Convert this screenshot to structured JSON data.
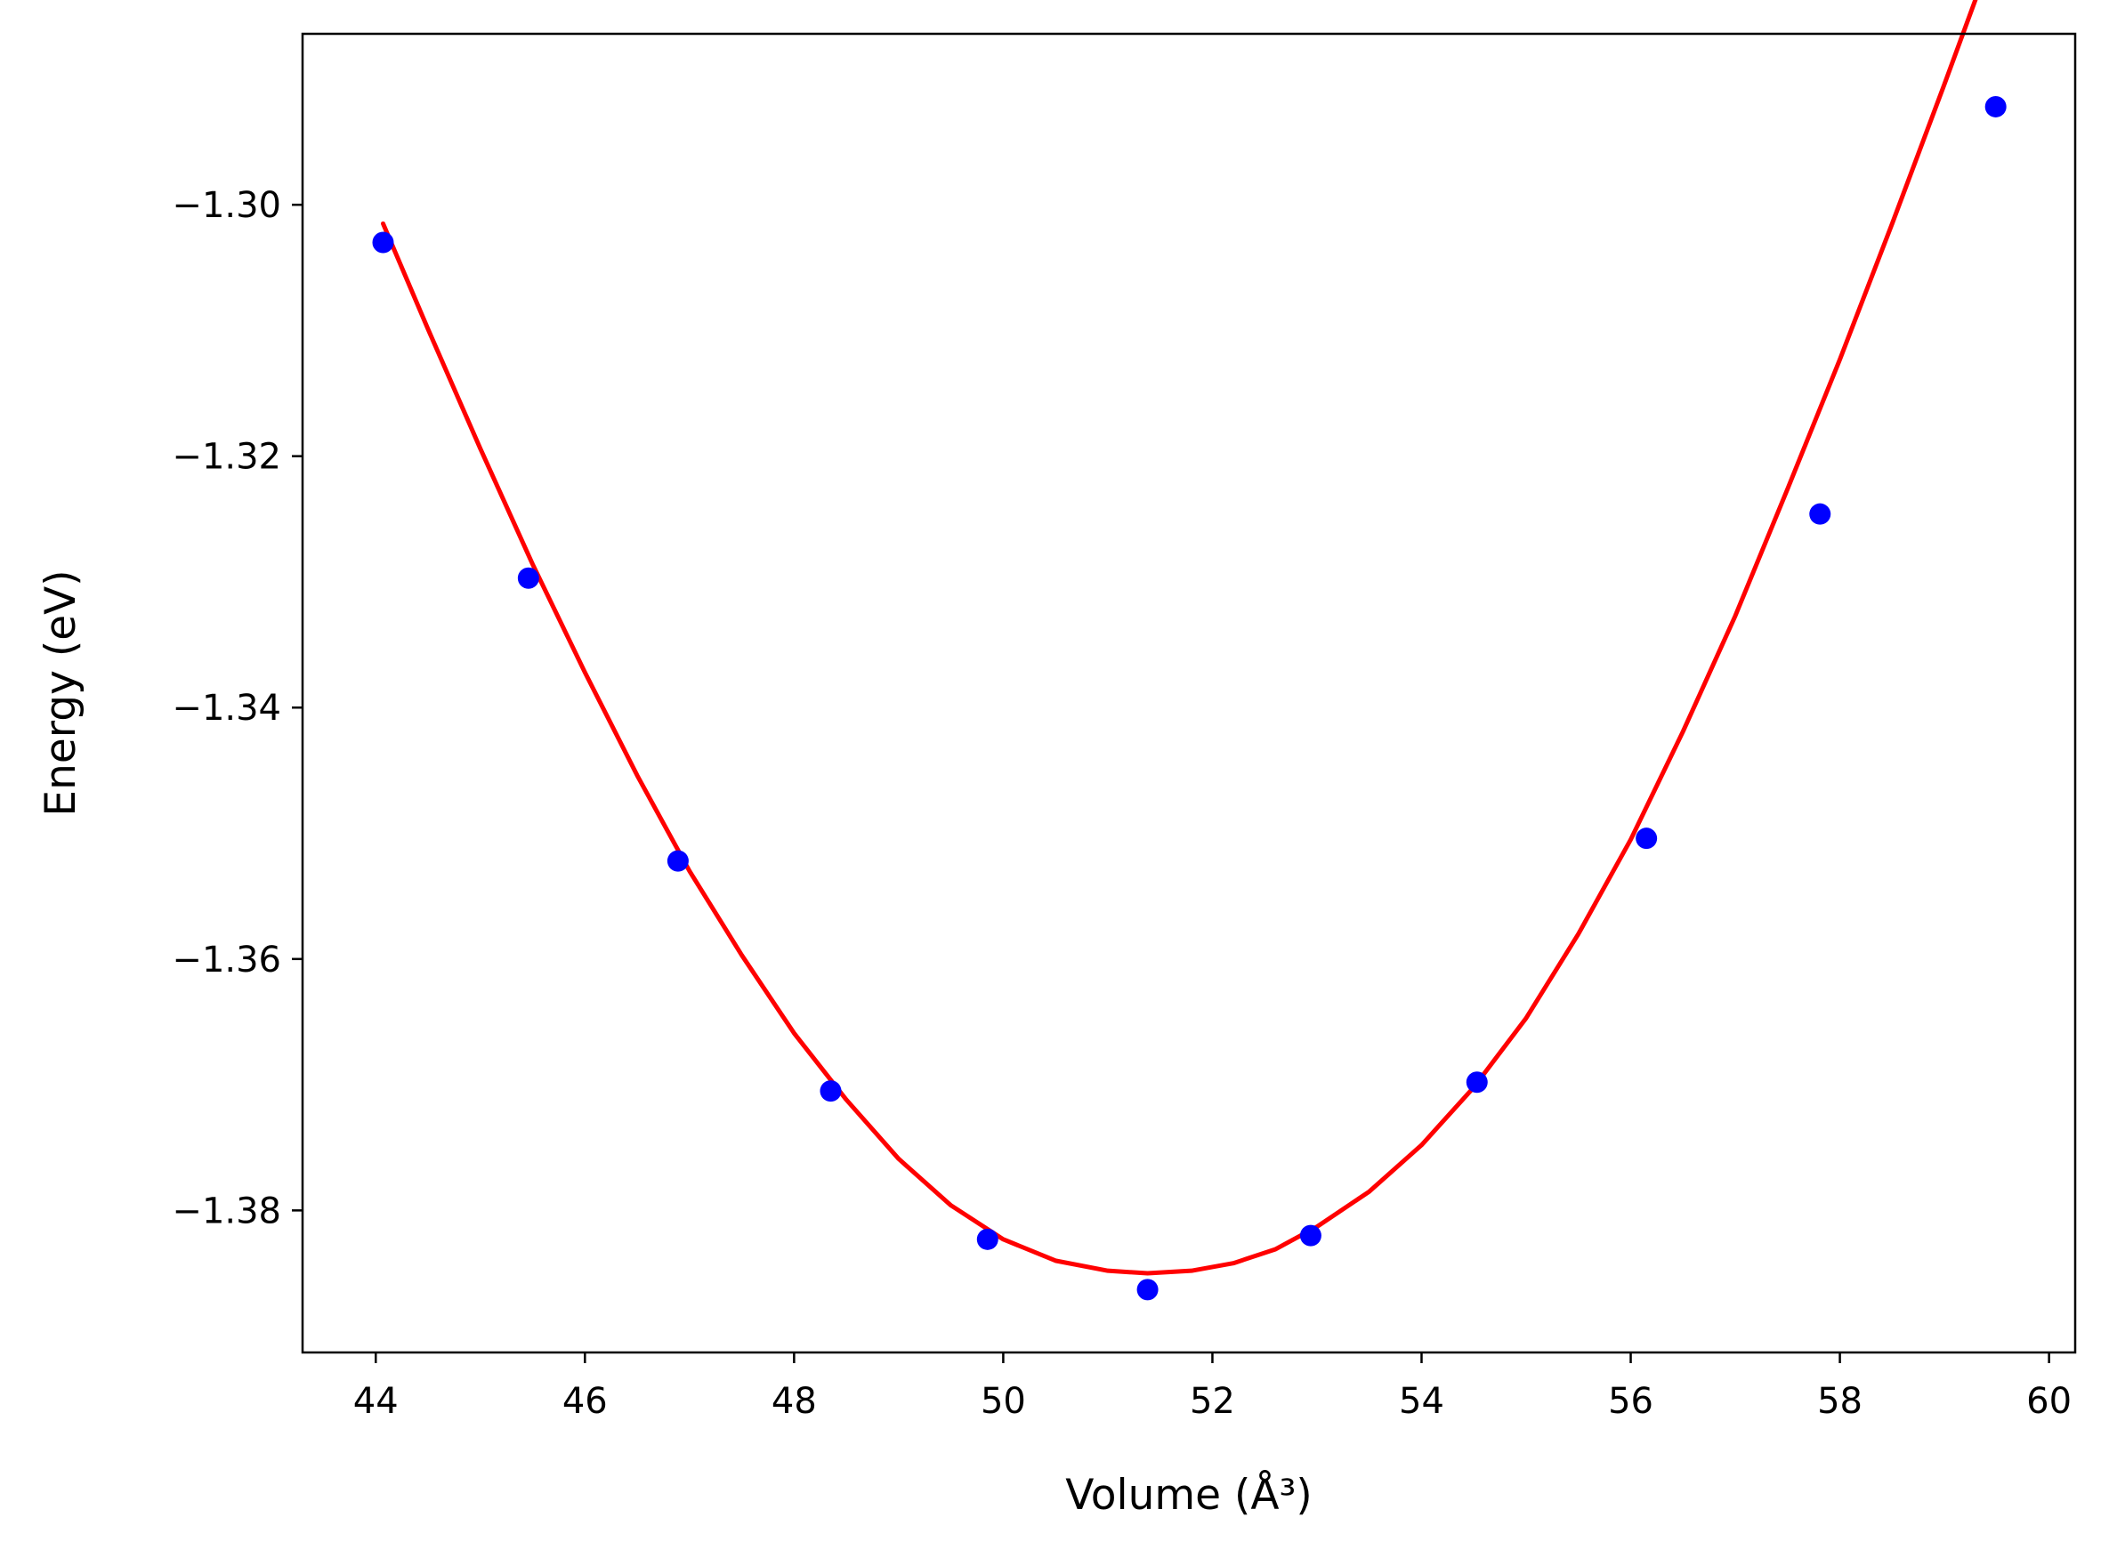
{
  "chart_data": {
    "type": "scatter",
    "title": "",
    "xlabel": "Volume (Å³)",
    "ylabel": "Energy (eV)",
    "xlim": [
      43.3,
      60.25
    ],
    "ylim": [
      -1.3913,
      -1.2864
    ],
    "xticks": [
      44,
      46,
      48,
      50,
      52,
      54,
      56,
      58,
      60
    ],
    "yticks": [
      -1.38,
      -1.36,
      -1.34,
      -1.32,
      -1.3
    ],
    "xtick_labels": [
      "44",
      "46",
      "48",
      "50",
      "52",
      "54",
      "56",
      "58",
      "60"
    ],
    "ytick_labels": [
      "−1.38",
      "−1.36",
      "−1.34",
      "−1.32",
      "−1.30"
    ],
    "grid": false,
    "legend": "none",
    "series": [
      {
        "kind": "points",
        "color": "#0000ff",
        "x": [
          44.07,
          45.46,
          46.89,
          48.35,
          49.85,
          51.38,
          52.94,
          54.53,
          56.15,
          57.81,
          59.49
        ],
        "y": [
          -1.303,
          -1.3297,
          -1.3522,
          -1.3705,
          -1.3823,
          -1.3863,
          -1.382,
          -1.3698,
          -1.3504,
          -1.3246,
          -1.2922
        ]
      },
      {
        "kind": "fit-curve",
        "color": "#ff0000",
        "x": [
          44.07,
          44.5,
          45.0,
          45.5,
          46.0,
          46.5,
          47.0,
          47.5,
          48.0,
          48.5,
          49.0,
          49.5,
          50.0,
          50.5,
          51.0,
          51.38,
          51.8,
          52.2,
          52.6,
          53.0,
          53.5,
          54.0,
          54.5,
          55.0,
          55.5,
          56.0,
          56.5,
          57.0,
          57.5,
          58.0,
          58.5,
          59.0,
          59.49
        ],
        "y": [
          -1.3015,
          -1.3099,
          -1.3194,
          -1.3286,
          -1.3372,
          -1.3454,
          -1.353,
          -1.3597,
          -1.3659,
          -1.3712,
          -1.3759,
          -1.3796,
          -1.3823,
          -1.384,
          -1.3848,
          -1.385,
          -1.3848,
          -1.3842,
          -1.3831,
          -1.3813,
          -1.3785,
          -1.3748,
          -1.3702,
          -1.3647,
          -1.358,
          -1.3505,
          -1.3419,
          -1.3327,
          -1.3226,
          -1.3123,
          -1.3015,
          -1.2904,
          -1.2793
        ]
      }
    ]
  }
}
